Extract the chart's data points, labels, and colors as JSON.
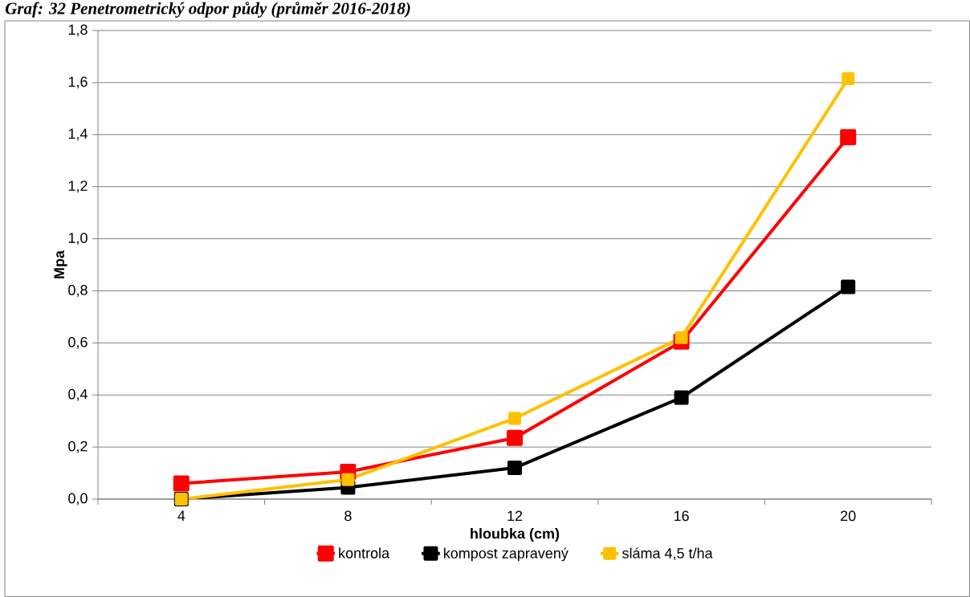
{
  "chart_data": {
    "type": "line",
    "title": "Graf: 32 Penetrometrický odpor půdy (průměr 2016-2018)",
    "xlabel": "hloubka (cm)",
    "ylabel": "Mpa",
    "categories": [
      "4",
      "8",
      "12",
      "16",
      "20"
    ],
    "series": [
      {
        "name": "kontrola",
        "color": "#ff0000",
        "values": [
          0.06,
          0.105,
          0.235,
          0.605,
          1.39
        ]
      },
      {
        "name": "kompost zapravený",
        "color": "#000000",
        "values": [
          0.0,
          0.045,
          0.12,
          0.39,
          0.815
        ]
      },
      {
        "name": "sláma 4,5 t/ha",
        "color": "#ffc000",
        "values": [
          0.0,
          0.075,
          0.31,
          0.62,
          1.615
        ]
      }
    ],
    "ylim": [
      0,
      1.8
    ],
    "yticks": [
      {
        "value": 0,
        "label": "0,0"
      },
      {
        "value": 0.2,
        "label": "0,2"
      },
      {
        "value": 0.4,
        "label": "0,4"
      },
      {
        "value": 0.6,
        "label": "0,6"
      },
      {
        "value": 0.8,
        "label": "0,8"
      },
      {
        "value": 1.0,
        "label": "1,0"
      },
      {
        "value": 1.2,
        "label": "1,2"
      },
      {
        "value": 1.4,
        "label": "1,4"
      },
      {
        "value": 1.6,
        "label": "1,6"
      },
      {
        "value": 1.8,
        "label": "1,8"
      }
    ],
    "grid": "y",
    "legend": "bottom",
    "marker": "square",
    "line_style": "solid"
  }
}
